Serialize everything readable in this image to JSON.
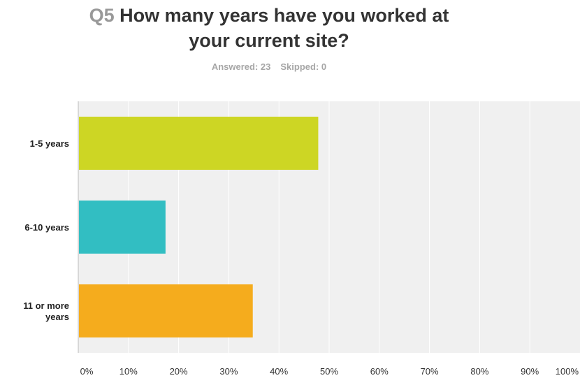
{
  "header": {
    "question_number": "Q5",
    "title_line1": "How many years have you worked at",
    "title_line2": "your current site?",
    "answered": "Answered: 23",
    "skipped": "Skipped: 0"
  },
  "chart_data": {
    "type": "bar",
    "orientation": "horizontal",
    "categories": [
      [
        "1-5 years"
      ],
      [
        "6-10 years"
      ],
      [
        "11 or more",
        "years"
      ]
    ],
    "values": [
      47.83,
      17.39,
      34.78
    ],
    "colors": [
      "#cdd624",
      "#32bec2",
      "#f5ac1d"
    ],
    "xlim": [
      0,
      100
    ],
    "xticks": [
      "0%",
      "10%",
      "20%",
      "30%",
      "40%",
      "50%",
      "60%",
      "70%",
      "80%",
      "90%",
      "100%"
    ],
    "grid": true
  }
}
